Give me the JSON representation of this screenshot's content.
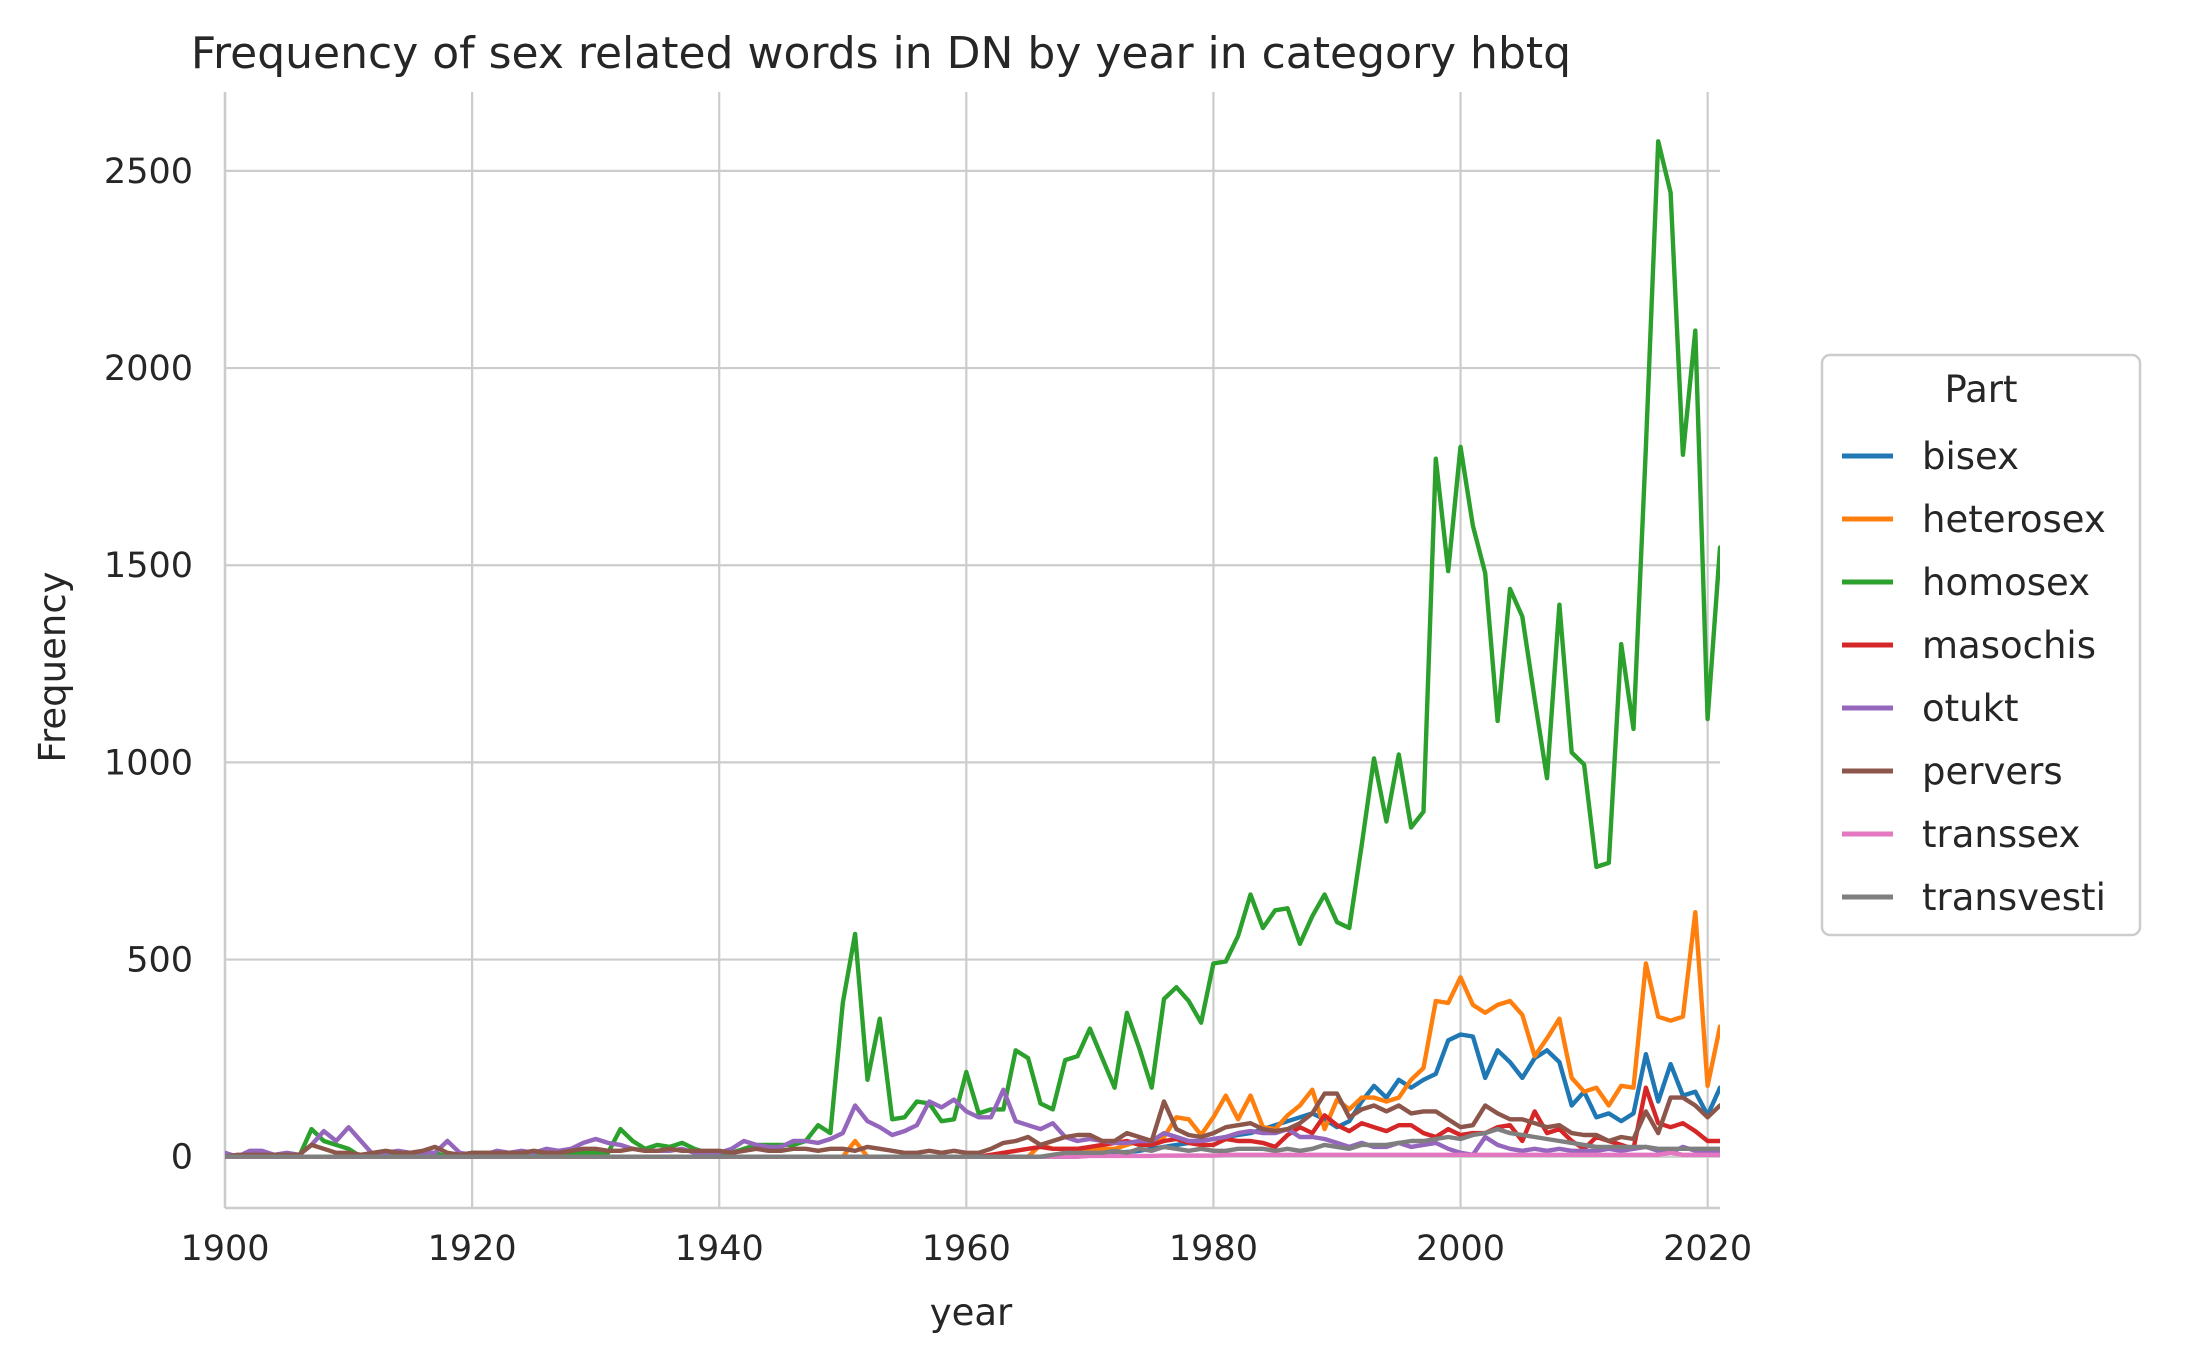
{
  "chart_data": {
    "type": "line",
    "title": "Frequency of sex related words in DN by year in category hbtq",
    "xlabel": "year",
    "ylabel": "Frequency",
    "xlim": [
      1900,
      2021
    ],
    "ylim": [
      -130,
      2700
    ],
    "xticks": [
      1900,
      1920,
      1940,
      1960,
      1980,
      2000,
      2020
    ],
    "yticks": [
      0,
      500,
      1000,
      1500,
      2000,
      2500
    ],
    "grid": true,
    "legend": {
      "title": "Part",
      "placement": "right"
    },
    "x": [
      1900,
      1901,
      1902,
      1903,
      1904,
      1905,
      1906,
      1907,
      1908,
      1909,
      1910,
      1911,
      1912,
      1913,
      1914,
      1915,
      1916,
      1917,
      1918,
      1919,
      1920,
      1921,
      1922,
      1923,
      1924,
      1925,
      1926,
      1927,
      1928,
      1929,
      1930,
      1931,
      1932,
      1933,
      1934,
      1935,
      1936,
      1937,
      1938,
      1939,
      1940,
      1941,
      1942,
      1943,
      1944,
      1945,
      1946,
      1947,
      1948,
      1949,
      1950,
      1951,
      1952,
      1953,
      1954,
      1955,
      1956,
      1957,
      1958,
      1959,
      1960,
      1961,
      1962,
      1963,
      1964,
      1965,
      1966,
      1967,
      1968,
      1969,
      1970,
      1971,
      1972,
      1973,
      1974,
      1975,
      1976,
      1977,
      1978,
      1979,
      1980,
      1981,
      1982,
      1983,
      1984,
      1985,
      1986,
      1987,
      1988,
      1989,
      1990,
      1991,
      1992,
      1993,
      1994,
      1995,
      1996,
      1997,
      1998,
      1999,
      2000,
      2001,
      2002,
      2003,
      2004,
      2005,
      2006,
      2007,
      2008,
      2009,
      2010,
      2011,
      2012,
      2013,
      2014,
      2015,
      2016,
      2017,
      2018,
      2019,
      2020,
      2021
    ],
    "series": [
      {
        "name": "bisex",
        "color": "#1f77b4",
        "values": [
          0,
          0,
          0,
          0,
          0,
          0,
          0,
          0,
          0,
          0,
          0,
          0,
          0,
          0,
          0,
          0,
          0,
          0,
          0,
          0,
          0,
          0,
          0,
          0,
          0,
          0,
          0,
          0,
          0,
          0,
          0,
          0,
          0,
          0,
          0,
          0,
          0,
          0,
          0,
          0,
          0,
          0,
          0,
          0,
          0,
          0,
          0,
          0,
          0,
          0,
          0,
          0,
          0,
          0,
          0,
          0,
          0,
          0,
          0,
          0,
          0,
          0,
          0,
          0,
          0,
          0,
          0,
          0,
          0,
          0,
          5,
          8,
          10,
          12,
          15,
          20,
          25,
          30,
          35,
          40,
          45,
          50,
          55,
          60,
          70,
          80,
          90,
          100,
          110,
          95,
          75,
          90,
          140,
          180,
          150,
          195,
          175,
          195,
          210,
          295,
          310,
          305,
          200,
          270,
          240,
          200,
          250,
          270,
          240,
          130,
          165,
          100,
          110,
          90,
          110,
          260,
          140,
          235,
          155,
          165,
          105,
          175
        ]
      },
      {
        "name": "heterosex",
        "color": "#ff7f0e",
        "values": [
          0,
          0,
          0,
          0,
          0,
          0,
          0,
          0,
          0,
          0,
          0,
          0,
          0,
          0,
          0,
          0,
          0,
          0,
          0,
          0,
          0,
          0,
          0,
          0,
          0,
          0,
          0,
          0,
          0,
          0,
          0,
          0,
          0,
          0,
          0,
          0,
          0,
          0,
          0,
          0,
          0,
          0,
          0,
          0,
          0,
          0,
          0,
          0,
          0,
          0,
          0,
          40,
          0,
          0,
          0,
          0,
          0,
          0,
          0,
          0,
          0,
          0,
          0,
          0,
          0,
          0,
          30,
          20,
          20,
          20,
          20,
          20,
          20,
          30,
          40,
          40,
          50,
          100,
          95,
          55,
          100,
          155,
          95,
          155,
          75,
          70,
          105,
          130,
          170,
          70,
          145,
          120,
          150,
          150,
          140,
          150,
          195,
          225,
          395,
          390,
          455,
          385,
          365,
          385,
          395,
          360,
          255,
          300,
          350,
          200,
          165,
          175,
          130,
          180,
          175,
          490,
          355,
          345,
          355,
          620,
          180,
          330
        ]
      },
      {
        "name": "homosex",
        "color": "#2ca02c",
        "values": [
          0,
          0,
          0,
          0,
          0,
          0,
          0,
          70,
          40,
          30,
          20,
          0,
          10,
          10,
          10,
          10,
          10,
          10,
          0,
          0,
          10,
          10,
          10,
          10,
          10,
          10,
          10,
          10,
          10,
          10,
          10,
          10,
          70,
          40,
          20,
          30,
          25,
          35,
          20,
          10,
          10,
          10,
          20,
          30,
          30,
          30,
          30,
          40,
          80,
          60,
          390,
          565,
          195,
          350,
          95,
          100,
          140,
          135,
          90,
          95,
          215,
          110,
          120,
          120,
          270,
          250,
          135,
          120,
          245,
          255,
          325,
          250,
          175,
          365,
          275,
          175,
          400,
          430,
          395,
          340,
          490,
          495,
          560,
          665,
          580,
          625,
          630,
          540,
          610,
          665,
          595,
          580,
          790,
          1010,
          850,
          1020,
          835,
          875,
          1770,
          1485,
          1800,
          1600,
          1480,
          1105,
          1440,
          1370,
          1160,
          960,
          1400,
          1025,
          995,
          735,
          745,
          1300,
          1085,
          1800,
          2575,
          2445,
          1780,
          2095,
          1110,
          1545
        ]
      },
      {
        "name": "masochis",
        "color": "#d62728",
        "values": [
          0,
          0,
          0,
          0,
          0,
          0,
          0,
          0,
          0,
          0,
          0,
          0,
          0,
          0,
          0,
          0,
          0,
          0,
          0,
          0,
          0,
          0,
          0,
          0,
          0,
          0,
          0,
          0,
          0,
          0,
          0,
          0,
          0,
          0,
          0,
          0,
          0,
          0,
          0,
          0,
          0,
          0,
          0,
          0,
          0,
          0,
          0,
          0,
          0,
          0,
          0,
          0,
          0,
          0,
          0,
          0,
          0,
          0,
          0,
          0,
          0,
          0,
          5,
          10,
          15,
          20,
          25,
          20,
          20,
          20,
          25,
          30,
          35,
          40,
          30,
          30,
          40,
          45,
          35,
          30,
          30,
          45,
          40,
          40,
          35,
          25,
          55,
          75,
          60,
          105,
          80,
          65,
          85,
          75,
          65,
          80,
          80,
          60,
          50,
          70,
          55,
          60,
          60,
          75,
          80,
          40,
          115,
          60,
          70,
          40,
          20,
          50,
          40,
          30,
          20,
          175,
          85,
          75,
          85,
          65,
          40,
          40
        ]
      },
      {
        "name": "otukt",
        "color": "#9467bd",
        "values": [
          10,
          0,
          15,
          15,
          5,
          10,
          5,
          30,
          65,
          40,
          75,
          40,
          5,
          10,
          15,
          10,
          10,
          10,
          40,
          10,
          5,
          5,
          15,
          10,
          15,
          10,
          20,
          15,
          20,
          35,
          45,
          35,
          30,
          20,
          15,
          15,
          15,
          20,
          10,
          10,
          10,
          20,
          40,
          30,
          25,
          25,
          40,
          40,
          35,
          45,
          60,
          130,
          90,
          75,
          55,
          65,
          80,
          140,
          125,
          145,
          115,
          100,
          100,
          170,
          90,
          80,
          70,
          85,
          50,
          40,
          45,
          40,
          35,
          35,
          40,
          40,
          60,
          50,
          40,
          40,
          45,
          50,
          60,
          65,
          60,
          60,
          70,
          50,
          50,
          45,
          35,
          25,
          35,
          25,
          25,
          35,
          25,
          30,
          35,
          20,
          10,
          5,
          50,
          30,
          20,
          15,
          20,
          15,
          20,
          15,
          15,
          15,
          20,
          15,
          20,
          25,
          15,
          10,
          25,
          15,
          10,
          15
        ]
      },
      {
        "name": "pervers",
        "color": "#8c564b",
        "values": [
          0,
          5,
          5,
          5,
          5,
          5,
          5,
          30,
          20,
          10,
          10,
          5,
          10,
          15,
          10,
          10,
          15,
          25,
          10,
          5,
          10,
          10,
          10,
          10,
          10,
          15,
          10,
          10,
          15,
          20,
          20,
          15,
          15,
          20,
          15,
          15,
          20,
          15,
          15,
          15,
          15,
          10,
          15,
          20,
          15,
          15,
          20,
          20,
          15,
          20,
          20,
          15,
          25,
          20,
          15,
          10,
          10,
          15,
          10,
          15,
          10,
          10,
          20,
          35,
          40,
          50,
          30,
          40,
          50,
          55,
          55,
          40,
          40,
          60,
          50,
          40,
          140,
          70,
          55,
          50,
          60,
          75,
          80,
          85,
          70,
          65,
          70,
          85,
          110,
          160,
          160,
          100,
          120,
          130,
          115,
          130,
          110,
          115,
          115,
          95,
          75,
          80,
          130,
          110,
          95,
          95,
          85,
          75,
          80,
          60,
          55,
          55,
          40,
          50,
          45,
          115,
          60,
          150,
          150,
          130,
          100,
          130
        ]
      },
      {
        "name": "transsex",
        "color": "#e377c2",
        "values": [
          0,
          0,
          0,
          0,
          0,
          0,
          0,
          0,
          0,
          0,
          0,
          0,
          0,
          0,
          0,
          0,
          0,
          0,
          0,
          0,
          0,
          0,
          0,
          0,
          0,
          0,
          0,
          0,
          0,
          0,
          0,
          0,
          0,
          0,
          0,
          0,
          0,
          0,
          0,
          0,
          0,
          0,
          0,
          0,
          0,
          0,
          0,
          0,
          0,
          0,
          0,
          0,
          0,
          0,
          0,
          0,
          0,
          0,
          0,
          0,
          0,
          0,
          0,
          0,
          0,
          0,
          0,
          0,
          0,
          0,
          2,
          2,
          2,
          2,
          2,
          2,
          3,
          3,
          3,
          3,
          3,
          5,
          5,
          5,
          5,
          5,
          5,
          5,
          5,
          5,
          5,
          5,
          5,
          5,
          5,
          5,
          5,
          5,
          5,
          5,
          5,
          5,
          5,
          5,
          5,
          5,
          5,
          5,
          5,
          5,
          5,
          5,
          5,
          5,
          5,
          5,
          5,
          10,
          5,
          5,
          5,
          5
        ]
      },
      {
        "name": "transvesti",
        "color": "#7f7f7f",
        "values": [
          0,
          0,
          0,
          0,
          0,
          0,
          0,
          0,
          0,
          0,
          0,
          0,
          0,
          0,
          0,
          0,
          0,
          0,
          0,
          0,
          0,
          0,
          0,
          0,
          0,
          0,
          0,
          0,
          0,
          0,
          0,
          0,
          0,
          0,
          0,
          0,
          0,
          0,
          0,
          0,
          0,
          0,
          0,
          0,
          0,
          0,
          0,
          0,
          0,
          0,
          0,
          0,
          0,
          0,
          0,
          0,
          0,
          0,
          0,
          0,
          0,
          0,
          0,
          0,
          0,
          0,
          0,
          5,
          10,
          10,
          10,
          10,
          15,
          10,
          20,
          15,
          25,
          20,
          15,
          20,
          15,
          15,
          20,
          20,
          20,
          15,
          20,
          15,
          20,
          30,
          25,
          20,
          30,
          30,
          30,
          35,
          40,
          40,
          45,
          50,
          45,
          55,
          60,
          70,
          60,
          55,
          50,
          45,
          40,
          35,
          30,
          25,
          25,
          25,
          25,
          25,
          20,
          20,
          20,
          20,
          20,
          20
        ]
      }
    ]
  }
}
